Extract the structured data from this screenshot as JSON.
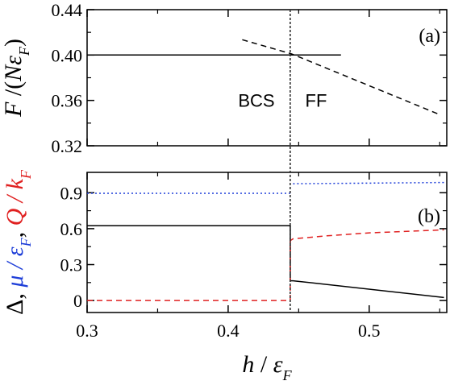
{
  "chart_data": [
    {
      "panel_label": "(a)",
      "type": "line",
      "ylabel": "F/(Nε_F)",
      "ylabel_parts": [
        {
          "text": "F",
          "italic": true
        },
        {
          "text": " /(",
          "italic": false
        },
        {
          "text": "Nε",
          "italic": true
        },
        {
          "text": "F",
          "italic": true,
          "sub": true
        },
        {
          "text": ")",
          "italic": false
        }
      ],
      "xlim": [
        0.3,
        0.555
      ],
      "ylim": [
        0.32,
        0.44
      ],
      "yticks": [
        0.32,
        0.36,
        0.4,
        0.44
      ],
      "ytick_labels": [
        "0.32",
        "0.36",
        "0.40",
        "0.44"
      ],
      "annotations": [
        "BCS",
        "FF"
      ],
      "series": [
        {
          "style": "solid",
          "color": "#000000",
          "x": [
            0.3,
            0.48
          ],
          "y": [
            0.4,
            0.4
          ]
        },
        {
          "style": "dashed",
          "color": "#000000",
          "x": [
            0.41,
            0.445,
            0.55
          ],
          "y": [
            0.4135,
            0.401,
            0.3475
          ]
        }
      ]
    },
    {
      "panel_label": "(b)",
      "type": "line",
      "ylabel": "Δ, μ/ε_F, Q/k_F",
      "ylabel_parts": [
        {
          "text": "Δ, ",
          "color": "#000000"
        },
        {
          "text": "μ / ε",
          "color": "#1f3fd8",
          "italic": true
        },
        {
          "text": "F",
          "color": "#1f3fd8",
          "italic": true,
          "sub": true
        },
        {
          "text": ", ",
          "color": "#000000"
        },
        {
          "text": "Q / k",
          "color": "#e02020",
          "italic": true
        },
        {
          "text": "F",
          "color": "#e02020",
          "italic": true,
          "sub": true
        }
      ],
      "xlabel": "h/ε_F",
      "xlabel_parts": [
        {
          "text": "h",
          "italic": true
        },
        {
          "text": " / ",
          "italic": false
        },
        {
          "text": "ε",
          "italic": true
        },
        {
          "text": "F",
          "italic": true,
          "sub": true
        }
      ],
      "xlim": [
        0.3,
        0.555
      ],
      "ylim": [
        -0.1,
        1.07
      ],
      "xticks": [
        0.3,
        0.4,
        0.5
      ],
      "xtick_labels": [
        "0.3",
        "0.4",
        "0.5"
      ],
      "yticks": [
        0.0,
        0.3,
        0.6,
        0.9
      ],
      "ytick_labels": [
        "0",
        "0.3",
        "0.6",
        "0.9"
      ],
      "series": [
        {
          "style": "solid",
          "color": "#000000",
          "x": [
            0.3,
            0.444,
            0.444,
            0.446,
            0.553
          ],
          "y": [
            0.625,
            0.625,
            0.165,
            0.165,
            0.025
          ]
        },
        {
          "style": "dotted",
          "color": "#1f3fd8",
          "x": [
            0.3,
            0.444
          ],
          "y": [
            0.895,
            0.895
          ]
        },
        {
          "style": "dotted",
          "color": "#1f3fd8",
          "x": [
            0.446,
            0.553
          ],
          "y": [
            0.975,
            0.985
          ]
        },
        {
          "style": "dashed",
          "color": "#e02020",
          "x": [
            0.3,
            0.444,
            0.444,
            0.446,
            0.47,
            0.5,
            0.553
          ],
          "y": [
            0.0,
            0.0,
            0.5,
            0.515,
            0.54,
            0.565,
            0.59
          ]
        }
      ]
    }
  ],
  "transition_line": {
    "x": 0.444,
    "style": "dotted",
    "color": "#333333"
  }
}
